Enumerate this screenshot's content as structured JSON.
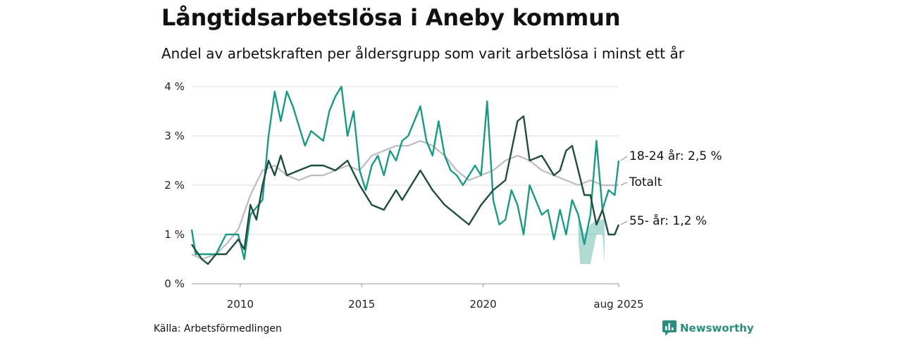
{
  "header": {
    "title": "Långtidsarbetslösa i Aneby kommun",
    "subtitle": "Andel av arbetskraften per åldersgrupp som varit arbetslösa i minst ett år"
  },
  "footer": {
    "source": "Källa: Arbetsförmedlingen",
    "brand": "Newsworthy"
  },
  "chart_data": {
    "type": "line",
    "title": "Långtidsarbetslösa i Aneby kommun",
    "subtitle": "Andel av arbetskraften per åldersgrupp som varit arbetslösa i minst ett år",
    "xlabel": "",
    "ylabel": "",
    "x_ticks": [
      "2010",
      "2015",
      "2020",
      "aug 2025"
    ],
    "y_ticks": [
      "0 %",
      "1 %",
      "2 %",
      "3 %",
      "4 %"
    ],
    "ylim": [
      0,
      4
    ],
    "grid": true,
    "x_range": [
      "2008-01",
      "2025-08"
    ],
    "series": [
      {
        "name": "Totalt",
        "color": "#bdbac3",
        "end_label": "Totalt",
        "points": [
          [
            "2008-01",
            0.6
          ],
          [
            "2008-06",
            0.5
          ],
          [
            "2009-01",
            0.6
          ],
          [
            "2009-06",
            0.8
          ],
          [
            "2009-12",
            1.1
          ],
          [
            "2010-06",
            1.8
          ],
          [
            "2010-12",
            2.3
          ],
          [
            "2011-06",
            2.4
          ],
          [
            "2011-12",
            2.2
          ],
          [
            "2012-06",
            2.1
          ],
          [
            "2012-12",
            2.2
          ],
          [
            "2013-06",
            2.2
          ],
          [
            "2013-12",
            2.3
          ],
          [
            "2014-06",
            2.4
          ],
          [
            "2014-12",
            2.3
          ],
          [
            "2015-06",
            2.6
          ],
          [
            "2015-12",
            2.7
          ],
          [
            "2016-06",
            2.8
          ],
          [
            "2016-12",
            2.8
          ],
          [
            "2017-06",
            2.9
          ],
          [
            "2017-12",
            2.8
          ],
          [
            "2018-06",
            2.6
          ],
          [
            "2018-12",
            2.3
          ],
          [
            "2019-06",
            2.1
          ],
          [
            "2019-12",
            2.2
          ],
          [
            "2020-06",
            2.3
          ],
          [
            "2020-12",
            2.5
          ],
          [
            "2021-06",
            2.6
          ],
          [
            "2021-12",
            2.5
          ],
          [
            "2022-06",
            2.3
          ],
          [
            "2022-12",
            2.2
          ],
          [
            "2023-06",
            2.1
          ],
          [
            "2023-12",
            2.0
          ],
          [
            "2024-06",
            2.1
          ],
          [
            "2024-12",
            2.0
          ],
          [
            "2025-08",
            2.0
          ]
        ]
      },
      {
        "name": "18-24 år",
        "color": "#1a9985",
        "end_label": "18-24 år: 2,5 %",
        "points": [
          [
            "2008-01",
            1.1
          ],
          [
            "2008-03",
            0.6
          ],
          [
            "2008-09",
            0.6
          ],
          [
            "2009-01",
            0.6
          ],
          [
            "2009-06",
            1.0
          ],
          [
            "2009-12",
            1.0
          ],
          [
            "2010-03",
            0.5
          ],
          [
            "2010-06",
            1.4
          ],
          [
            "2010-12",
            1.7
          ],
          [
            "2011-03",
            3.0
          ],
          [
            "2011-06",
            3.9
          ],
          [
            "2011-09",
            3.3
          ],
          [
            "2011-12",
            3.9
          ],
          [
            "2012-03",
            3.6
          ],
          [
            "2012-06",
            3.2
          ],
          [
            "2012-09",
            2.8
          ],
          [
            "2012-12",
            3.1
          ],
          [
            "2013-03",
            3.0
          ],
          [
            "2013-06",
            2.9
          ],
          [
            "2013-09",
            3.5
          ],
          [
            "2013-12",
            3.8
          ],
          [
            "2014-03",
            4.0
          ],
          [
            "2014-06",
            3.0
          ],
          [
            "2014-09",
            3.5
          ],
          [
            "2014-12",
            2.3
          ],
          [
            "2015-03",
            1.9
          ],
          [
            "2015-06",
            2.4
          ],
          [
            "2015-09",
            2.6
          ],
          [
            "2015-12",
            2.2
          ],
          [
            "2016-03",
            2.7
          ],
          [
            "2016-06",
            2.5
          ],
          [
            "2016-09",
            2.9
          ],
          [
            "2016-12",
            3.0
          ],
          [
            "2017-03",
            3.3
          ],
          [
            "2017-06",
            3.6
          ],
          [
            "2017-09",
            2.9
          ],
          [
            "2017-12",
            2.6
          ],
          [
            "2018-03",
            3.3
          ],
          [
            "2018-06",
            2.6
          ],
          [
            "2018-09",
            2.3
          ],
          [
            "2018-12",
            2.2
          ],
          [
            "2019-03",
            2.0
          ],
          [
            "2019-06",
            2.2
          ],
          [
            "2019-09",
            2.4
          ],
          [
            "2019-12",
            2.2
          ],
          [
            "2020-03",
            3.7
          ],
          [
            "2020-06",
            1.7
          ],
          [
            "2020-09",
            1.2
          ],
          [
            "2020-12",
            1.3
          ],
          [
            "2021-03",
            1.9
          ],
          [
            "2021-06",
            1.6
          ],
          [
            "2021-09",
            1.0
          ],
          [
            "2021-12",
            2.0
          ],
          [
            "2022-03",
            1.7
          ],
          [
            "2022-06",
            1.4
          ],
          [
            "2022-09",
            1.5
          ],
          [
            "2022-12",
            0.9
          ],
          [
            "2023-03",
            1.5
          ],
          [
            "2023-06",
            1.0
          ],
          [
            "2023-09",
            1.7
          ],
          [
            "2023-12",
            1.4
          ],
          [
            "2024-03",
            0.8
          ],
          [
            "2024-06",
            1.4
          ],
          [
            "2024-09",
            2.9
          ],
          [
            "2024-12",
            1.5
          ],
          [
            "2025-03",
            1.9
          ],
          [
            "2025-06",
            1.8
          ],
          [
            "2025-08",
            2.5
          ]
        ]
      },
      {
        "name": "55- år",
        "color": "#1e4d3f",
        "end_label": "55- år: 1,2 %",
        "points": [
          [
            "2008-01",
            0.8
          ],
          [
            "2008-06",
            0.5
          ],
          [
            "2008-09",
            0.4
          ],
          [
            "2009-01",
            0.6
          ],
          [
            "2009-06",
            0.6
          ],
          [
            "2009-12",
            0.9
          ],
          [
            "2010-03",
            0.7
          ],
          [
            "2010-06",
            1.6
          ],
          [
            "2010-09",
            1.3
          ],
          [
            "2010-12",
            2.0
          ],
          [
            "2011-03",
            2.5
          ],
          [
            "2011-06",
            2.2
          ],
          [
            "2011-09",
            2.6
          ],
          [
            "2011-12",
            2.2
          ],
          [
            "2012-06",
            2.3
          ],
          [
            "2012-12",
            2.4
          ],
          [
            "2013-06",
            2.4
          ],
          [
            "2013-12",
            2.3
          ],
          [
            "2014-06",
            2.5
          ],
          [
            "2014-12",
            2.0
          ],
          [
            "2015-06",
            1.6
          ],
          [
            "2015-12",
            1.5
          ],
          [
            "2016-06",
            1.9
          ],
          [
            "2016-09",
            1.7
          ],
          [
            "2016-12",
            1.9
          ],
          [
            "2017-06",
            2.3
          ],
          [
            "2017-12",
            1.9
          ],
          [
            "2018-06",
            1.6
          ],
          [
            "2018-12",
            1.4
          ],
          [
            "2019-06",
            1.2
          ],
          [
            "2019-12",
            1.6
          ],
          [
            "2020-06",
            1.9
          ],
          [
            "2020-12",
            2.1
          ],
          [
            "2021-06",
            3.3
          ],
          [
            "2021-09",
            3.4
          ],
          [
            "2021-12",
            2.5
          ],
          [
            "2022-06",
            2.6
          ],
          [
            "2022-12",
            2.2
          ],
          [
            "2023-03",
            2.3
          ],
          [
            "2023-06",
            2.7
          ],
          [
            "2023-09",
            2.8
          ],
          [
            "2023-12",
            2.3
          ],
          [
            "2024-03",
            1.8
          ],
          [
            "2024-06",
            1.8
          ],
          [
            "2024-09",
            1.2
          ],
          [
            "2024-12",
            1.5
          ],
          [
            "2025-03",
            1.0
          ],
          [
            "2025-06",
            1.0
          ],
          [
            "2025-08",
            1.2
          ]
        ]
      }
    ],
    "uncertainty_band": {
      "series": "18-24 år",
      "points": [
        [
          "2023-12",
          0.9,
          1.3
        ],
        [
          "2024-01",
          0.4,
          1.3
        ],
        [
          "2024-03",
          0.4,
          1.0
        ],
        [
          "2024-06",
          0.4,
          1.2
        ],
        [
          "2024-09",
          1.0,
          1.3
        ],
        [
          "2024-12",
          1.0,
          1.3
        ],
        [
          "2025-01",
          0.4,
          1.3
        ]
      ]
    }
  }
}
